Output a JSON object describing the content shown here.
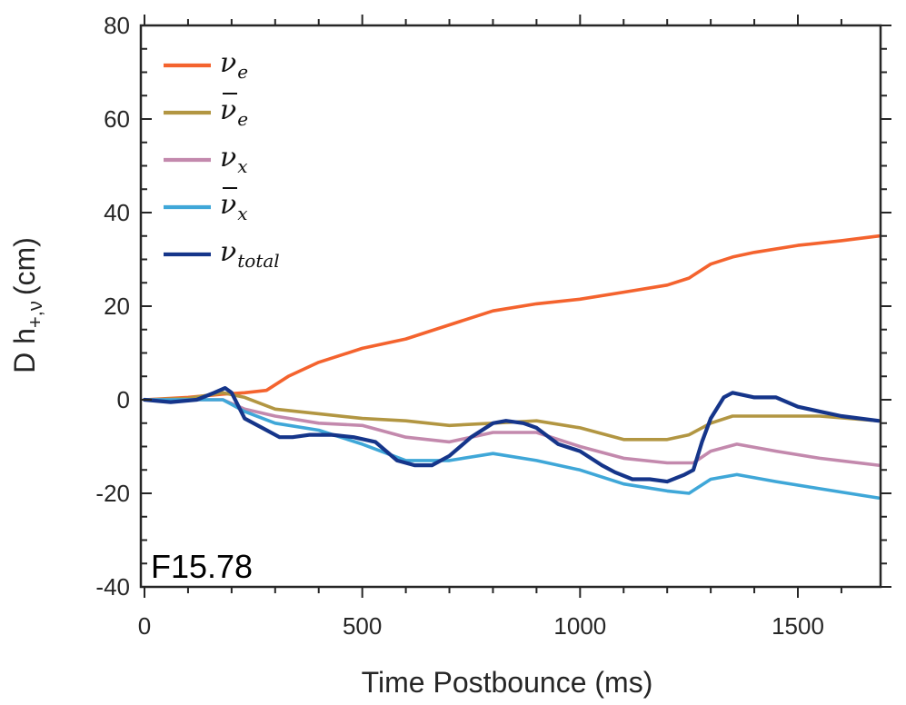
{
  "chart_data": {
    "type": "line",
    "title": "",
    "xlabel": "Time Postbounce (ms)",
    "ylabel_parts": {
      "main": "D h",
      "sub": "+,ν",
      "units": "(cm)"
    },
    "xlim": [
      -5,
      1690
    ],
    "ylim": [
      -40,
      80
    ],
    "xticks": [
      0,
      500,
      1000,
      1500
    ],
    "xtick_labels": [
      "0",
      "500",
      "1000",
      "1500"
    ],
    "yticks": [
      -40,
      -20,
      0,
      20,
      40,
      60,
      80
    ],
    "ytick_labels": [
      "-40",
      "-20",
      "0",
      "20",
      "40",
      "60",
      "80"
    ],
    "annotation": "F15.78",
    "legend_position": "top-left",
    "series": [
      {
        "name": "ν_e",
        "symbol": "ν",
        "bar": false,
        "sub": "e",
        "sub_roman": false,
        "color": "#f4632e",
        "x": [
          0,
          100,
          180,
          230,
          280,
          330,
          400,
          500,
          600,
          700,
          800,
          900,
          1000,
          1100,
          1200,
          1250,
          1300,
          1350,
          1400,
          1500,
          1600,
          1685
        ],
        "y": [
          0,
          0.5,
          1.2,
          1.5,
          2,
          5,
          8,
          11,
          13,
          16,
          19,
          20.5,
          21.5,
          23,
          24.5,
          26,
          29,
          30.5,
          31.5,
          33,
          34,
          35
        ]
      },
      {
        "name": "ν̄_e",
        "symbol": "ν",
        "bar": true,
        "sub": "e",
        "sub_roman": false,
        "color": "#b29642",
        "x": [
          0,
          100,
          180,
          230,
          300,
          400,
          500,
          600,
          700,
          800,
          900,
          1000,
          1100,
          1200,
          1250,
          1300,
          1350,
          1450,
          1550,
          1685
        ],
        "y": [
          0,
          0.3,
          1.5,
          0.5,
          -2,
          -3,
          -4,
          -4.5,
          -5.5,
          -5,
          -4.5,
          -6,
          -8.5,
          -8.5,
          -7.5,
          -5,
          -3.5,
          -3.5,
          -3.5,
          -4.5
        ]
      },
      {
        "name": "ν_x",
        "symbol": "ν",
        "bar": false,
        "sub": "x",
        "sub_roman": false,
        "color": "#c389ad",
        "x": [
          0,
          100,
          180,
          230,
          300,
          400,
          500,
          600,
          700,
          800,
          900,
          1000,
          1100,
          1200,
          1260,
          1300,
          1360,
          1450,
          1550,
          1685
        ],
        "y": [
          0,
          0,
          0,
          -2,
          -3.5,
          -5,
          -5.5,
          -8,
          -9,
          -7,
          -7,
          -10,
          -12.5,
          -13.5,
          -13.5,
          -11,
          -9.5,
          -11,
          -12.5,
          -14
        ]
      },
      {
        "name": "ν̄_x",
        "symbol": "ν",
        "bar": true,
        "sub": "x",
        "sub_roman": false,
        "color": "#3fa7d8",
        "x": [
          0,
          100,
          180,
          230,
          300,
          400,
          500,
          600,
          700,
          800,
          900,
          1000,
          1100,
          1200,
          1250,
          1300,
          1360,
          1450,
          1550,
          1685
        ],
        "y": [
          0,
          0,
          0,
          -2.5,
          -5,
          -6.5,
          -9.5,
          -13,
          -13,
          -11.5,
          -13,
          -15,
          -18,
          -19.5,
          -20,
          -17,
          -16,
          -17.5,
          -19,
          -21
        ]
      },
      {
        "name": "ν_total",
        "symbol": "ν",
        "bar": false,
        "sub": "total",
        "sub_roman": true,
        "color": "#15358a",
        "x": [
          0,
          60,
          120,
          160,
          185,
          200,
          230,
          270,
          310,
          340,
          380,
          430,
          480,
          530,
          580,
          620,
          660,
          700,
          750,
          800,
          830,
          870,
          900,
          950,
          1000,
          1050,
          1080,
          1120,
          1160,
          1200,
          1240,
          1260,
          1280,
          1300,
          1330,
          1350,
          1400,
          1450,
          1500,
          1550,
          1600,
          1685
        ],
        "y": [
          0,
          -0.5,
          0,
          1.5,
          2.5,
          1.5,
          -4,
          -6,
          -8,
          -8,
          -7.5,
          -7.5,
          -8,
          -9,
          -13,
          -14,
          -14,
          -12,
          -8,
          -5,
          -4.5,
          -5,
          -6,
          -9.5,
          -11,
          -14,
          -15.5,
          -17,
          -17,
          -17.5,
          -16,
          -15,
          -9,
          -4,
          0.5,
          1.5,
          0.5,
          0.5,
          -1.5,
          -2.5,
          -3.5,
          -4.5
        ]
      }
    ]
  }
}
